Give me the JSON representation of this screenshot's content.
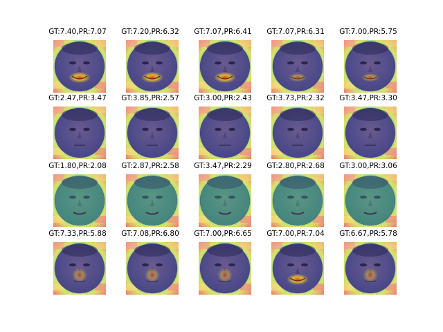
{
  "figure": {
    "panels": [
      {
        "label": "GT:7.40,PR:7.07",
        "heatmap": "hot-mouth",
        "tint": "#3b3fa0"
      },
      {
        "label": "GT:7.20,PR:6.32",
        "heatmap": "hot-mouth",
        "tint": "#3b3fa0"
      },
      {
        "label": "GT:7.07,PR:6.41",
        "heatmap": "hot-mouth",
        "tint": "#3b3fa0"
      },
      {
        "label": "GT:7.07,PR:6.31",
        "heatmap": "warm-mouth",
        "tint": "#3b3fa0"
      },
      {
        "label": "GT:7.00,PR:5.75",
        "heatmap": "warm-mouth",
        "tint": "#3b3fa0"
      },
      {
        "label": "GT:2.47,PR:3.47",
        "heatmap": "cool",
        "tint": "#3b3fa0"
      },
      {
        "label": "GT:3.85,PR:2.57",
        "heatmap": "cool",
        "tint": "#3b3fa0"
      },
      {
        "label": "GT:3.00,PR:2.43",
        "heatmap": "cool",
        "tint": "#3b3fa0"
      },
      {
        "label": "GT:3.73,PR:2.32",
        "heatmap": "cool",
        "tint": "#3b3fa0"
      },
      {
        "label": "GT:3.47,PR:3.30",
        "heatmap": "cool",
        "tint": "#3b3fa0"
      },
      {
        "label": "GT:1.80,PR:2.08",
        "heatmap": "teal",
        "tint": "#2a8a7a"
      },
      {
        "label": "GT:2.87,PR:2.58",
        "heatmap": "teal",
        "tint": "#2a8a7a"
      },
      {
        "label": "GT:3.47,PR:2.29",
        "heatmap": "teal",
        "tint": "#2a8a7a"
      },
      {
        "label": "GT:2.80,PR:2.68",
        "heatmap": "teal",
        "tint": "#2a8a7a"
      },
      {
        "label": "GT:3.00,PR:3.06",
        "heatmap": "teal",
        "tint": "#2a8a7a"
      },
      {
        "label": "GT:7.33,PR:5.88",
        "heatmap": "warm-center",
        "tint": "#3b3fa0"
      },
      {
        "label": "GT:7.08,PR:6.80",
        "heatmap": "warm-center",
        "tint": "#3b3fa0"
      },
      {
        "label": "GT:7.00,PR:6.65",
        "heatmap": "warm-center",
        "tint": "#3b3fa0"
      },
      {
        "label": "GT:7.00,PR:7.04",
        "heatmap": "hot-mouth",
        "tint": "#3b3fa0"
      },
      {
        "label": "GT:6.67,PR:5.78",
        "heatmap": "warm-center",
        "tint": "#3b3fa0"
      }
    ]
  }
}
